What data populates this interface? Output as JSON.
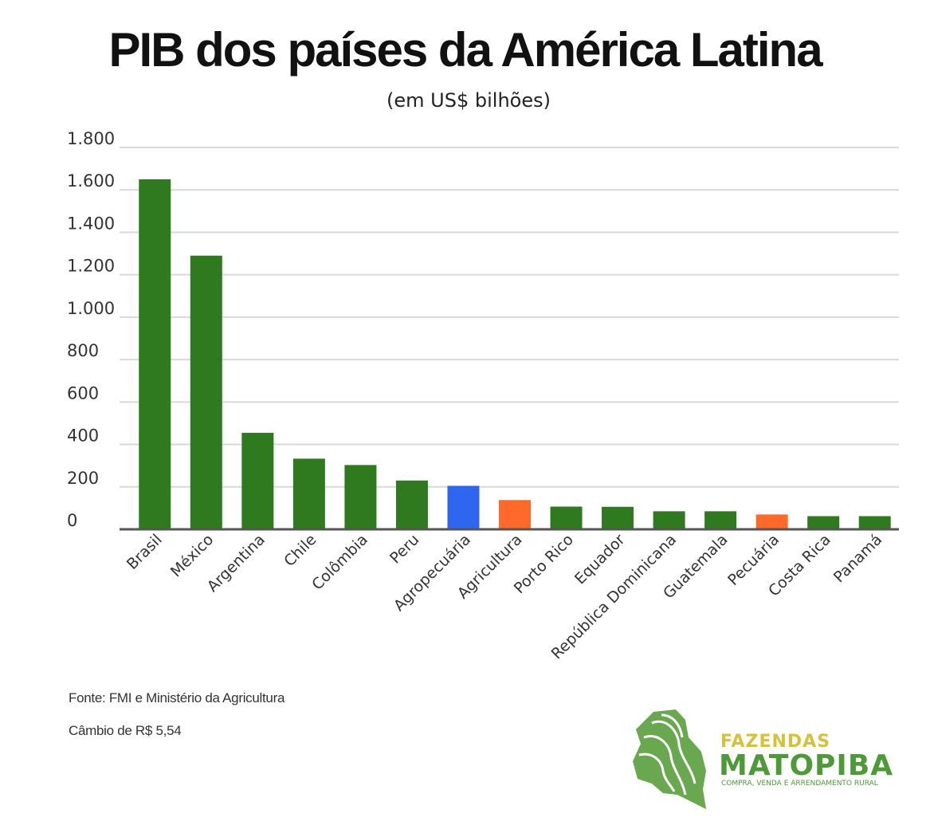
{
  "chart_data": {
    "type": "bar",
    "title": "PIB dos países da América Latina",
    "subtitle": "(em US$ bilhões)",
    "ylim": [
      0,
      1800
    ],
    "yticks": [
      0,
      200,
      400,
      600,
      800,
      1000,
      1200,
      1400,
      1600,
      1800
    ],
    "ytick_labels": [
      "0",
      "200",
      "400",
      "600",
      "800",
      "1.000",
      "1.200",
      "1.400",
      "1.600",
      "1.800"
    ],
    "grid": true,
    "categories": [
      "Brasil",
      "México",
      "Argentina",
      "Chile",
      "Colômbia",
      "Peru",
      "Agropecuária",
      "Agricultura",
      "Porto Rico",
      "Equador",
      "República Dominicana",
      "Guatemala",
      "Pecuária",
      "Costa Rica",
      "Panamá"
    ],
    "values": [
      1650,
      1290,
      455,
      333,
      303,
      230,
      205,
      138,
      107,
      106,
      85,
      85,
      70,
      62,
      62
    ],
    "bar_colors": [
      "#2f7a1f",
      "#2f7a1f",
      "#2f7a1f",
      "#2f7a1f",
      "#2f7a1f",
      "#2f7a1f",
      "#2f66f0",
      "#ff6a2b",
      "#2f7a1f",
      "#2f7a1f",
      "#2f7a1f",
      "#2f7a1f",
      "#ff6a2b",
      "#2f7a1f",
      "#2f7a1f"
    ]
  },
  "footer": {
    "source": "Fonte: FMI e Ministério da Agricultura",
    "exchange": "Câmbio de R$ 5,54"
  },
  "logo": {
    "word1": "FAZENDAS",
    "word2": "MATOPIBA",
    "tagline": "COMPRA, VENDA E ARRENDAMENTO RURAL",
    "colors": {
      "green": "#4e9a38",
      "yellow": "#d6c23a"
    }
  }
}
